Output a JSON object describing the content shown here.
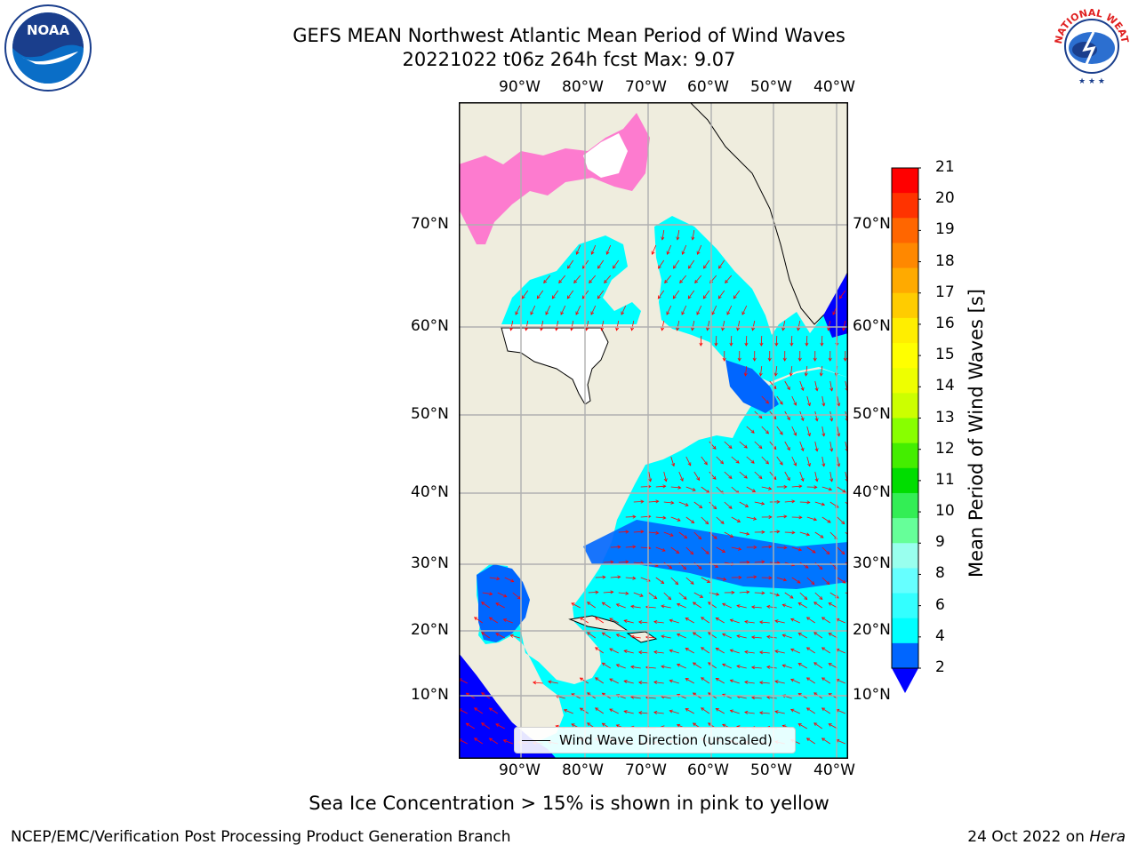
{
  "title": {
    "line1": "GEFS MEAN Northwest Atlantic Mean Period of Wind Waves",
    "line2": "20221022 t06z 264h fcst   Max: 9.07"
  },
  "map": {
    "lon_labels": [
      "90°W",
      "80°W",
      "70°W",
      "60°W",
      "50°W",
      "40°W"
    ],
    "lat_labels": [
      "70°N",
      "60°N",
      "50°N",
      "40°N",
      "30°N",
      "20°N",
      "10°N"
    ],
    "land_color": "#efedde",
    "ocean_colors": [
      "#0000ff",
      "#0066ff",
      "#00ffff",
      "#44ffff",
      "#88ffff"
    ],
    "ice_colors": [
      "#ff66cc",
      "#ffaa00",
      "#ffff00"
    ],
    "arrow_color": "#ff0000",
    "legend_label": "Wind Wave Direction (unscaled)"
  },
  "colorbar": {
    "title": "Mean Period of Wind Waves [s]",
    "ticks": [
      "21",
      "20",
      "19",
      "18",
      "17",
      "16",
      "15",
      "14",
      "13",
      "12",
      "11",
      "10",
      "9",
      "8",
      "6",
      "4",
      "2"
    ],
    "colors": [
      "#ff0000",
      "#ff3300",
      "#ff6600",
      "#ff8800",
      "#ffaa00",
      "#ffcc00",
      "#ffee00",
      "#ffff00",
      "#eeff00",
      "#ccff00",
      "#88ff00",
      "#44ee00",
      "#00dd00",
      "#33ee55",
      "#66ff99",
      "#99ffee",
      "#66ffff",
      "#33ffff",
      "#00ffff",
      "#0066ff"
    ],
    "extend_color": "#0000ff"
  },
  "logos": {
    "left": "NOAA",
    "right": "NATIONAL WEATHER SERVICE"
  },
  "note": "Sea Ice Concentration > 15% is shown in pink to yellow",
  "footer": {
    "left": "NCEP/EMC/Verification Post Processing Product Generation Branch",
    "right_date": "24 Oct 2022 on ",
    "right_machine": "Hera"
  }
}
